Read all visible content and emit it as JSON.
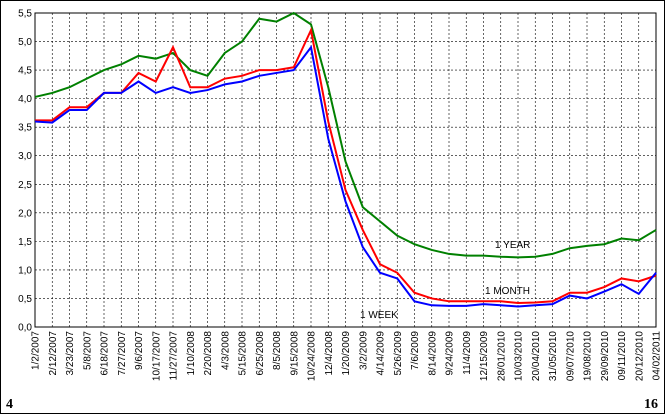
{
  "chart_data": {
    "type": "line",
    "categories": [
      "1/2/2007",
      "2/12/2007",
      "3/23/2007",
      "5/8/2007",
      "6/18/2007",
      "7/27/2007",
      "9/6/2007",
      "10/17/2007",
      "11/27/2007",
      "1/10/2008",
      "2/20/2008",
      "4/3/2008",
      "5/15/2008",
      "6/25/2008",
      "8/5/2008",
      "9/15/2008",
      "10/24/2008",
      "12/4/2008",
      "1/20/2009",
      "3/2/2009",
      "4/14/2009",
      "5/26/2009",
      "7/6/2009",
      "8/14/2009",
      "9/24/2009",
      "11/4/2009",
      "12/15/2009",
      "28/01/2010",
      "10/03/2010",
      "20/04/2010",
      "31/05/2010",
      "09/07/2010",
      "19/08/2010",
      "29/09/2010",
      "09/11/2010",
      "20/12/2010",
      "04/02/2011"
    ],
    "series": [
      {
        "name": "1 YEAR",
        "color": "#008000",
        "values": [
          4.03,
          4.1,
          4.2,
          4.35,
          4.5,
          4.6,
          4.75,
          4.7,
          4.8,
          4.5,
          4.4,
          4.8,
          5.0,
          5.4,
          5.35,
          5.5,
          5.3,
          4.2,
          2.9,
          2.1,
          1.85,
          1.6,
          1.45,
          1.35,
          1.28,
          1.25,
          1.25,
          1.23,
          1.22,
          1.23,
          1.28,
          1.38,
          1.42,
          1.45,
          1.55,
          1.52,
          1.7
        ]
      },
      {
        "name": "1 MONTH",
        "color": "#ff0000",
        "values": [
          3.62,
          3.62,
          3.85,
          3.85,
          4.1,
          4.1,
          4.45,
          4.3,
          4.9,
          4.2,
          4.2,
          4.35,
          4.4,
          4.5,
          4.5,
          4.55,
          5.2,
          3.6,
          2.4,
          1.7,
          1.1,
          0.95,
          0.6,
          0.5,
          0.45,
          0.45,
          0.45,
          0.45,
          0.42,
          0.43,
          0.45,
          0.6,
          0.6,
          0.7,
          0.85,
          0.8,
          0.9
        ]
      },
      {
        "name": "1 WEEK",
        "color": "#0000ff",
        "values": [
          3.6,
          3.58,
          3.8,
          3.8,
          4.1,
          4.1,
          4.3,
          4.1,
          4.2,
          4.1,
          4.15,
          4.25,
          4.3,
          4.4,
          4.45,
          4.5,
          4.9,
          3.3,
          2.2,
          1.4,
          0.95,
          0.85,
          0.45,
          0.38,
          0.37,
          0.37,
          0.4,
          0.38,
          0.36,
          0.38,
          0.4,
          0.55,
          0.5,
          0.62,
          0.75,
          0.58,
          0.95
        ]
      }
    ],
    "ylim": [
      0,
      5.5
    ],
    "yticks": [
      {
        "value": 0,
        "label": "0,0"
      },
      {
        "value": 0.5,
        "label": "0,5"
      },
      {
        "value": 1,
        "label": "1,0"
      },
      {
        "value": 1.5,
        "label": "1,5"
      },
      {
        "value": 2,
        "label": "2,0"
      },
      {
        "value": 2.5,
        "label": "2,5"
      },
      {
        "value": 3,
        "label": "3,0"
      },
      {
        "value": 3.5,
        "label": "3,5"
      },
      {
        "value": 4,
        "label": "4,0"
      },
      {
        "value": 4.5,
        "label": "4,5"
      },
      {
        "value": 5,
        "label": "5,0"
      },
      {
        "value": 5.5,
        "label": "5,5"
      }
    ],
    "grid": true
  },
  "page_numbers": [
    "4",
    "16"
  ]
}
